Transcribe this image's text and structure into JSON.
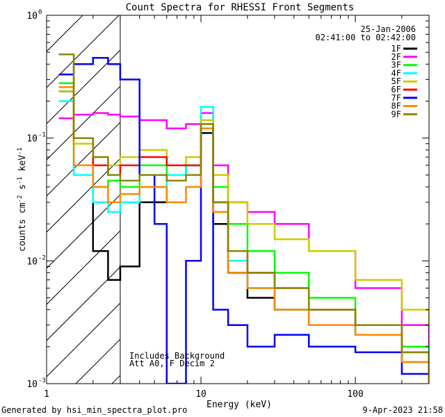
{
  "chart_data": {
    "type": "line",
    "title": "Count Spectra for RHESSI Front Segments",
    "xlabel": "Energy (keV)",
    "ylabel": "counts cm",
    "ylabel_sup1": "-2",
    "ylabel_mid": " s",
    "ylabel_sup2": "-1",
    "ylabel_end": " keV",
    "ylabel_sup3": "-1",
    "xscale": "log",
    "yscale": "log",
    "xlim": [
      1,
      300
    ],
    "ylim": [
      0.001,
      1
    ],
    "x_ticks": [
      {
        "value": 1,
        "label": "1"
      },
      {
        "value": 10,
        "label": "10"
      },
      {
        "value": 100,
        "label": "100"
      }
    ],
    "y_ticks": [
      {
        "value": 1,
        "base": "10",
        "exp": "0"
      },
      {
        "value": 0.1,
        "base": "10",
        "exp": "-1"
      },
      {
        "value": 0.01,
        "base": "10",
        "exp": "-2"
      },
      {
        "value": 0.001,
        "base": "10",
        "exp": "-3"
      }
    ],
    "date_label": "25-Jan-2006",
    "time_range_label": "02:41:00 to 02:42:00",
    "shaded_region_xmax": 3,
    "annotations": [
      "Includes Background",
      "Att A0, F Decim 2"
    ],
    "footer_left": "Generated by hsi_min_spectra_plot.pro",
    "footer_right": "9-Apr-2023 21:58",
    "series": [
      {
        "name": "1F",
        "color": "#000000",
        "x": [
          1.2,
          1.5,
          2,
          2.5,
          3,
          4,
          6,
          8,
          10,
          12,
          15,
          20,
          30,
          50,
          100,
          200,
          300
        ],
        "values": [
          0.24,
          0.09,
          0.012,
          0.007,
          0.009,
          0.03,
          0.05,
          0.06,
          0.11,
          0.02,
          0.008,
          0.005,
          0.004,
          0.003,
          0.0025,
          0.0015,
          0.001
        ]
      },
      {
        "name": "2F",
        "color": "#ff00ff",
        "x": [
          1.2,
          1.5,
          2,
          2.5,
          3,
          4,
          6,
          8,
          10,
          12,
          15,
          20,
          30,
          50,
          100,
          200,
          300
        ],
        "values": [
          0.145,
          0.155,
          0.16,
          0.155,
          0.15,
          0.14,
          0.12,
          0.13,
          0.16,
          0.06,
          0.03,
          0.025,
          0.02,
          0.012,
          0.006,
          0.003,
          0.002
        ]
      },
      {
        "name": "3F",
        "color": "#00ff00",
        "x": [
          1.2,
          1.5,
          2,
          2.5,
          3,
          4,
          6,
          8,
          10,
          12,
          15,
          20,
          30,
          50,
          100,
          200,
          300
        ],
        "values": [
          0.28,
          0.05,
          0.04,
          0.045,
          0.04,
          0.06,
          0.05,
          0.06,
          0.13,
          0.04,
          0.02,
          0.012,
          0.008,
          0.005,
          0.003,
          0.002,
          0.0015
        ]
      },
      {
        "name": "4F",
        "color": "#00ffff",
        "x": [
          1.2,
          1.5,
          2,
          2.5,
          3,
          4,
          6,
          8,
          10,
          12,
          15,
          20,
          30,
          50,
          100,
          200,
          300
        ],
        "values": [
          0.2,
          0.05,
          0.03,
          0.025,
          0.03,
          0.04,
          0.05,
          0.06,
          0.18,
          0.03,
          0.01,
          0.006,
          0.004,
          0.003,
          0.0025,
          0.0015,
          0.001
        ]
      },
      {
        "name": "5F",
        "color": "#cccc00",
        "x": [
          1.2,
          1.5,
          2,
          2.5,
          3,
          4,
          6,
          8,
          10,
          12,
          15,
          20,
          30,
          50,
          100,
          200,
          300
        ],
        "values": [
          0.24,
          0.09,
          0.07,
          0.06,
          0.07,
          0.08,
          0.06,
          0.07,
          0.14,
          0.05,
          0.03,
          0.02,
          0.015,
          0.012,
          0.007,
          0.004,
          0.003
        ]
      },
      {
        "name": "6F",
        "color": "#ff0000",
        "x": [
          1.2,
          1.5,
          2,
          2.5,
          3,
          4,
          6,
          8,
          10,
          12,
          15,
          20,
          30,
          50,
          100,
          200,
          300
        ],
        "values": [
          0.33,
          0.1,
          0.06,
          0.05,
          0.06,
          0.07,
          0.06,
          0.06,
          0.12,
          0.03,
          0.012,
          0.008,
          0.006,
          0.004,
          0.003,
          0.0018,
          0.0012
        ]
      },
      {
        "name": "7F",
        "color": "#0000ff",
        "x": [
          1.2,
          1.5,
          2,
          2.5,
          3,
          4,
          5,
          6,
          8,
          10,
          12,
          15,
          20,
          30,
          50,
          100,
          200,
          300
        ],
        "values": [
          0.33,
          0.4,
          0.45,
          0.4,
          0.3,
          0.05,
          0.02,
          0.001,
          0.01,
          0.12,
          0.004,
          0.003,
          0.002,
          0.0025,
          0.002,
          0.0018,
          0.0012,
          0.001
        ]
      },
      {
        "name": "8F",
        "color": "#ff8800",
        "x": [
          1.2,
          1.5,
          2,
          2.5,
          3,
          4,
          6,
          8,
          10,
          12,
          15,
          20,
          30,
          50,
          100,
          200,
          300
        ],
        "values": [
          0.26,
          0.06,
          0.04,
          0.03,
          0.035,
          0.04,
          0.03,
          0.04,
          0.12,
          0.025,
          0.008,
          0.006,
          0.004,
          0.003,
          0.0025,
          0.0015,
          0.001
        ]
      },
      {
        "name": "9F",
        "color": "#888800",
        "x": [
          1.2,
          1.5,
          2,
          2.5,
          3,
          4,
          6,
          8,
          10,
          12,
          15,
          20,
          30,
          50,
          100,
          200,
          300
        ],
        "values": [
          0.48,
          0.1,
          0.07,
          0.05,
          0.045,
          0.05,
          0.045,
          0.05,
          0.13,
          0.03,
          0.012,
          0.008,
          0.006,
          0.004,
          0.003,
          0.0018,
          0.0012
        ]
      }
    ]
  }
}
